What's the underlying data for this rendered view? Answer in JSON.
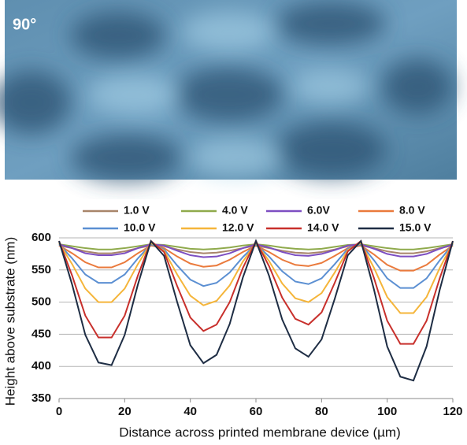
{
  "image_label": "90°",
  "chart_data": {
    "type": "line",
    "xlabel": "Distance across printed membrane device (µm)",
    "ylabel": "Height above substrate (nm)",
    "x": [
      0,
      4,
      8,
      12,
      16,
      20,
      24,
      28,
      32,
      36,
      40,
      44,
      48,
      52,
      56,
      60,
      64,
      68,
      72,
      76,
      80,
      84,
      88,
      92,
      96,
      100,
      104,
      108,
      112,
      116,
      120
    ],
    "xlim": [
      0,
      120
    ],
    "xticks": [
      0,
      20,
      40,
      60,
      80,
      100,
      120
    ],
    "ylim": [
      350,
      600
    ],
    "yticks": [
      350,
      400,
      450,
      500,
      550,
      600
    ],
    "grid": true,
    "legend": "top",
    "series": [
      {
        "name": "1.0 V",
        "color": "#a8856a",
        "values": [
          588,
          584,
          579,
          576,
          576,
          579,
          584,
          588,
          587,
          582,
          578,
          576,
          577,
          580,
          584,
          588,
          584,
          580,
          577,
          576,
          578,
          582,
          587,
          588,
          584,
          579,
          576,
          576,
          579,
          584,
          588
        ]
      },
      {
        "name": "4.0 V",
        "color": "#8faa4c",
        "values": [
          590,
          587,
          584,
          582,
          582,
          584,
          587,
          590,
          589,
          586,
          583,
          582,
          583,
          585,
          588,
          590,
          588,
          585,
          583,
          582,
          583,
          586,
          589,
          590,
          587,
          584,
          582,
          582,
          584,
          587,
          590
        ]
      },
      {
        "name": "6.0V",
        "color": "#7d4fc2",
        "values": [
          590,
          584,
          576,
          573,
          573,
          576,
          584,
          590,
          588,
          580,
          573,
          570,
          571,
          576,
          584,
          590,
          585,
          578,
          573,
          572,
          575,
          581,
          588,
          590,
          583,
          575,
          571,
          571,
          575,
          583,
          590
        ]
      },
      {
        "name": "8.0 V",
        "color": "#ea7a3c",
        "values": [
          588,
          576,
          562,
          554,
          554,
          562,
          576,
          588,
          584,
          571,
          560,
          555,
          557,
          566,
          578,
          588,
          578,
          566,
          558,
          556,
          561,
          572,
          584,
          588,
          574,
          558,
          549,
          549,
          558,
          574,
          588
        ]
      },
      {
        "name": "10.0 V",
        "color": "#5b8fd2",
        "values": [
          590,
          568,
          543,
          530,
          530,
          543,
          568,
          590,
          582,
          557,
          535,
          525,
          530,
          546,
          570,
          590,
          571,
          548,
          532,
          528,
          537,
          559,
          583,
          590,
          565,
          537,
          522,
          522,
          537,
          565,
          590
        ]
      },
      {
        "name": "12.0 V",
        "color": "#f5b53a",
        "values": [
          592,
          559,
          521,
          500,
          500,
          521,
          559,
          592,
          580,
          543,
          510,
          495,
          502,
          526,
          563,
          592,
          564,
          529,
          506,
          500,
          514,
          546,
          581,
          592,
          553,
          508,
          483,
          483,
          508,
          553,
          592
        ]
      },
      {
        "name": "14.0 V",
        "color": "#c8302c",
        "values": [
          595,
          541,
          479,
          445,
          445,
          479,
          541,
          595,
          578,
          525,
          476,
          455,
          465,
          500,
          553,
          595,
          556,
          507,
          474,
          465,
          484,
          530,
          579,
          595,
          537,
          471,
          435,
          435,
          471,
          537,
          595
        ]
      },
      {
        "name": "15.0 V",
        "color": "#1e2d44",
        "values": [
          595,
          527,
          449,
          406,
          402,
          449,
          527,
          595,
          572,
          500,
          433,
          405,
          418,
          466,
          538,
          595,
          541,
          473,
          428,
          415,
          442,
          505,
          573,
          595,
          519,
          431,
          384,
          378,
          431,
          519,
          595
        ]
      }
    ]
  }
}
